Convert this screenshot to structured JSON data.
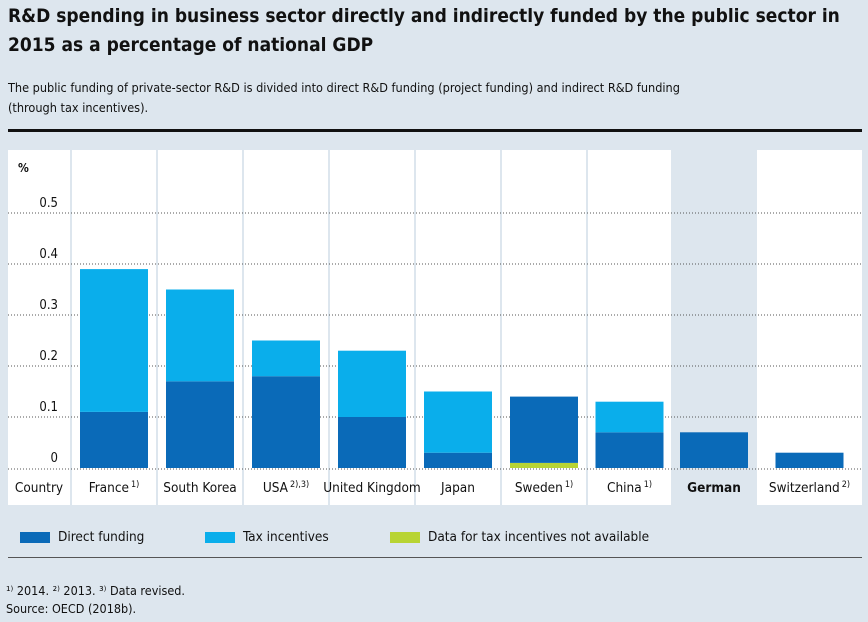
{
  "header": {
    "title": "R&D spending in business sector directly and indirectly funded by the public sector in 2015 as a percentage of national GDP",
    "subtitle": "The public funding of private-sector R&D is divided into direct R&D funding (project funding) and indirect R&D funding (through tax incentives)."
  },
  "chart_data": {
    "type": "bar",
    "stacked": true,
    "ylabel": "%",
    "ylim": [
      0,
      0.6
    ],
    "yticks": [
      "0",
      "0.1",
      "0.2",
      "0.3",
      "0.4",
      "0.5"
    ],
    "ytick_values": [
      0,
      0.1,
      0.2,
      0.3,
      0.4,
      0.5
    ],
    "first_column_label": "Country",
    "categories": [
      {
        "name": "France",
        "sup": "1)"
      },
      {
        "name": "South Korea",
        "sup": ""
      },
      {
        "name": "USA",
        "sup": "2),3)"
      },
      {
        "name": "United Kingdom",
        "sup": ""
      },
      {
        "name": "Japan",
        "sup": ""
      },
      {
        "name": "Sweden",
        "sup": "1)"
      },
      {
        "name": "China",
        "sup": "1)"
      },
      {
        "name": "German",
        "sup": "",
        "highlight": true
      },
      {
        "name": "Switzerland",
        "sup": "2)"
      }
    ],
    "series": [
      {
        "name": "Direct funding",
        "color": "#0a6ab8",
        "values": [
          0.11,
          0.17,
          0.18,
          0.1,
          0.03,
          0.13,
          0.07,
          0.07,
          0.03
        ]
      },
      {
        "name": "Tax incentives",
        "color": "#0aaeeb",
        "values": [
          0.28,
          0.18,
          0.07,
          0.13,
          0.12,
          0.0,
          0.06,
          0.0,
          0.0
        ]
      },
      {
        "name": "Data for tax incentives not available",
        "color": "#b8d433",
        "values": [
          0,
          0,
          0,
          0,
          0,
          0.01,
          0,
          0,
          0
        ]
      }
    ],
    "grid": true,
    "legend_placement": "bottom"
  },
  "legend": {
    "direct": "Direct funding",
    "tax": "Tax incentives",
    "na": "Data for tax incentives not available"
  },
  "colors": {
    "direct": "#0a6ab8",
    "tax": "#0aaeeb",
    "na": "#b8d433",
    "highlight_band": "#dde6ee"
  },
  "footer": {
    "footnotes": "¹⁾ 2014. ²⁾ 2013. ³⁾ Data revised.",
    "source": "Source: OECD (2018b)."
  }
}
